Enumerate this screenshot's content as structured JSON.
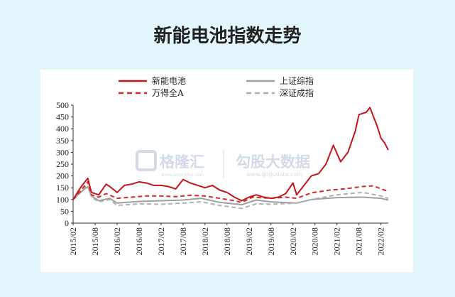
{
  "title": "新能电池指数走势",
  "colors": {
    "battery": "#c4161c",
    "a_share": "#d42a2a",
    "shanghai": "#a0a0a0",
    "shenzhen": "#b0b0b0",
    "watermark": "#aebfd6"
  },
  "watermark": {
    "brand1_cn": "格隆汇",
    "brand1_url": "www.gelonghui.com",
    "brand2_cn": "勾股大数据",
    "brand2_url": "www.gogudata.com"
  },
  "chart_data": {
    "type": "line",
    "title": "",
    "xlabel": "",
    "ylabel": "",
    "ylim": [
      0,
      500
    ],
    "yticks": [
      0,
      50,
      100,
      150,
      200,
      250,
      300,
      350,
      400,
      450,
      500
    ],
    "xlim": [
      "2015/02",
      "2022/04"
    ],
    "xticks": [
      "2015/02",
      "2015/08",
      "2016/02",
      "2016/08",
      "2017/02",
      "2017/08",
      "2018/02",
      "2018/08",
      "2019/02",
      "2019/08",
      "2020/02",
      "2020/08",
      "2021/02",
      "2021/08",
      "2022/02"
    ],
    "legend_position": "top",
    "grid": false,
    "series": [
      {
        "name": "新能电池",
        "style": "solid",
        "x": [
          "2015/02",
          "2015/04",
          "2015/06",
          "2015/07",
          "2015/09",
          "2015/11",
          "2015/12",
          "2016/02",
          "2016/04",
          "2016/06",
          "2016/08",
          "2016/10",
          "2016/12",
          "2017/02",
          "2017/04",
          "2017/06",
          "2017/08",
          "2017/10",
          "2017/12",
          "2018/02",
          "2018/04",
          "2018/06",
          "2018/08",
          "2018/10",
          "2018/12",
          "2019/02",
          "2019/04",
          "2019/06",
          "2019/08",
          "2019/10",
          "2019/12",
          "2020/02",
          "2020/03",
          "2020/05",
          "2020/07",
          "2020/09",
          "2020/11",
          "2021/01",
          "2021/03",
          "2021/05",
          "2021/07",
          "2021/08",
          "2021/10",
          "2021/11",
          "2021/12",
          "2022/01",
          "2022/02",
          "2022/03",
          "2022/04"
        ],
        "values": [
          100,
          150,
          190,
          130,
          120,
          165,
          155,
          130,
          160,
          165,
          175,
          170,
          160,
          160,
          155,
          145,
          185,
          170,
          160,
          150,
          160,
          140,
          130,
          110,
          95,
          110,
          120,
          110,
          105,
          110,
          125,
          170,
          120,
          160,
          200,
          210,
          250,
          330,
          260,
          300,
          390,
          460,
          470,
          490,
          450,
          410,
          360,
          340,
          310
        ]
      },
      {
        "name": "万得全A",
        "style": "dashed",
        "x": [
          "2015/02",
          "2015/04",
          "2015/06",
          "2015/07",
          "2015/09",
          "2015/11",
          "2016/02",
          "2016/06",
          "2016/10",
          "2017/02",
          "2017/06",
          "2017/10",
          "2018/02",
          "2018/06",
          "2018/10",
          "2018/12",
          "2019/03",
          "2019/08",
          "2019/12",
          "2020/03",
          "2020/07",
          "2020/12",
          "2021/04",
          "2021/09",
          "2021/12",
          "2022/02",
          "2022/04"
        ],
        "values": [
          100,
          135,
          175,
          120,
          110,
          125,
          105,
          110,
          115,
          115,
          112,
          118,
          115,
          105,
          95,
          88,
          110,
          105,
          110,
          105,
          128,
          140,
          145,
          155,
          158,
          145,
          135
        ]
      },
      {
        "name": "上证综指",
        "style": "solid",
        "x": [
          "2015/02",
          "2015/04",
          "2015/06",
          "2015/07",
          "2015/09",
          "2015/12",
          "2016/02",
          "2016/08",
          "2017/02",
          "2017/08",
          "2018/01",
          "2018/06",
          "2018/12",
          "2019/04",
          "2019/08",
          "2020/03",
          "2020/07",
          "2021/02",
          "2021/09",
          "2022/02",
          "2022/04"
        ],
        "values": [
          100,
          130,
          155,
          115,
          95,
          105,
          85,
          92,
          95,
          98,
          105,
          88,
          78,
          98,
          90,
          85,
          100,
          108,
          110,
          105,
          98
        ]
      },
      {
        "name": "深证成指",
        "style": "dashed",
        "x": [
          "2015/02",
          "2015/04",
          "2015/06",
          "2015/07",
          "2015/09",
          "2015/12",
          "2016/02",
          "2016/08",
          "2017/02",
          "2017/08",
          "2018/01",
          "2018/06",
          "2018/12",
          "2019/04",
          "2019/08",
          "2020/03",
          "2020/07",
          "2021/02",
          "2021/09",
          "2022/02",
          "2022/04"
        ],
        "values": [
          100,
          140,
          160,
          110,
          90,
          100,
          75,
          82,
          80,
          85,
          90,
          75,
          62,
          82,
          80,
          85,
          100,
          120,
          130,
          115,
          105
        ]
      }
    ]
  }
}
